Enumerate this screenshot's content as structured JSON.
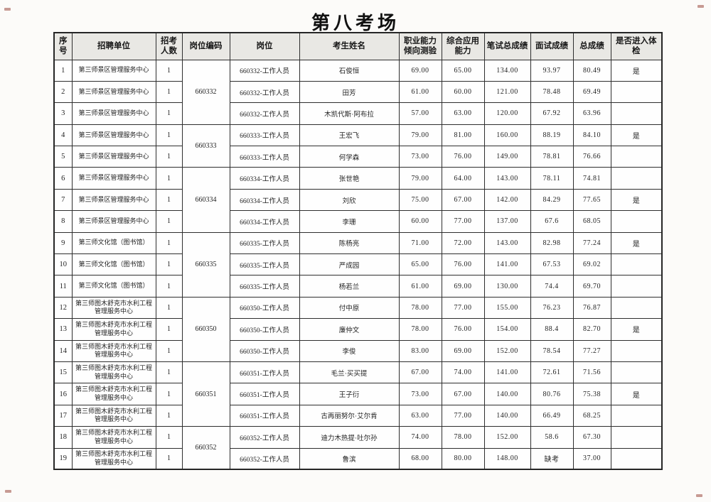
{
  "page": {
    "title": "第八考场"
  },
  "table": {
    "headers": [
      "序号",
      "招聘单位",
      "招考人数",
      "岗位编码",
      "岗位",
      "考生姓名",
      "职业能力倾向测验",
      "综合应用能力",
      "笔试总成绩",
      "面试成绩",
      "总成绩",
      "是否进入体检"
    ],
    "rows": [
      {
        "seq": "1",
        "unit": "第三师景区管理服务中心",
        "count": "1",
        "code": "660332",
        "code_rowspan": 3,
        "position": "660332-工作人员",
        "name": "石俊恒",
        "aptitude": "69.00",
        "comprehensive": "65.00",
        "written_total": "134.00",
        "interview": "93.97",
        "total": "80.49",
        "physical": "是"
      },
      {
        "seq": "2",
        "unit": "第三师景区管理服务中心",
        "count": "1",
        "code": null,
        "position": "660332-工作人员",
        "name": "田芳",
        "aptitude": "61.00",
        "comprehensive": "60.00",
        "written_total": "121.00",
        "interview": "78.48",
        "total": "69.49",
        "physical": ""
      },
      {
        "seq": "3",
        "unit": "第三师景区管理服务中心",
        "count": "1",
        "code": null,
        "position": "660332-工作人员",
        "name": "木凯代斯·阿布拉",
        "aptitude": "57.00",
        "comprehensive": "63.00",
        "written_total": "120.00",
        "interview": "67.92",
        "total": "63.96",
        "physical": ""
      },
      {
        "seq": "4",
        "unit": "第三师景区管理服务中心",
        "count": "1",
        "code": "660333",
        "code_rowspan": 2,
        "position": "660333-工作人员",
        "name": "王宏飞",
        "aptitude": "79.00",
        "comprehensive": "81.00",
        "written_total": "160.00",
        "interview": "88.19",
        "total": "84.10",
        "physical": "是"
      },
      {
        "seq": "5",
        "unit": "第三师景区管理服务中心",
        "count": "1",
        "code": null,
        "position": "660333-工作人员",
        "name": "何学森",
        "aptitude": "73.00",
        "comprehensive": "76.00",
        "written_total": "149.00",
        "interview": "78.81",
        "total": "76.66",
        "physical": ""
      },
      {
        "seq": "6",
        "unit": "第三师景区管理服务中心",
        "count": "1",
        "code": "660334",
        "code_rowspan": 3,
        "position": "660334-工作人员",
        "name": "张世艳",
        "aptitude": "79.00",
        "comprehensive": "64.00",
        "written_total": "143.00",
        "interview": "78.11",
        "total": "74.81",
        "physical": ""
      },
      {
        "seq": "7",
        "unit": "第三师景区管理服务中心",
        "count": "1",
        "code": null,
        "position": "660334-工作人员",
        "name": "刘欣",
        "aptitude": "75.00",
        "comprehensive": "67.00",
        "written_total": "142.00",
        "interview": "84.29",
        "total": "77.65",
        "physical": "是"
      },
      {
        "seq": "8",
        "unit": "第三师景区管理服务中心",
        "count": "1",
        "code": null,
        "position": "660334-工作人员",
        "name": "李珊",
        "aptitude": "60.00",
        "comprehensive": "77.00",
        "written_total": "137.00",
        "interview": "67.6",
        "total": "68.05",
        "physical": ""
      },
      {
        "seq": "9",
        "unit": "第三师文化馆（图书馆）",
        "count": "1",
        "code": "660335",
        "code_rowspan": 3,
        "position": "660335-工作人员",
        "name": "陈杨亮",
        "aptitude": "71.00",
        "comprehensive": "72.00",
        "written_total": "143.00",
        "interview": "82.98",
        "total": "77.24",
        "physical": "是"
      },
      {
        "seq": "10",
        "unit": "第三师文化馆（图书馆）",
        "count": "1",
        "code": null,
        "position": "660335-工作人员",
        "name": "严成园",
        "aptitude": "65.00",
        "comprehensive": "76.00",
        "written_total": "141.00",
        "interview": "67.53",
        "total": "69.02",
        "physical": ""
      },
      {
        "seq": "11",
        "unit": "第三师文化馆（图书馆）",
        "count": "1",
        "code": null,
        "position": "660335-工作人员",
        "name": "杨若兰",
        "aptitude": "61.00",
        "comprehensive": "69.00",
        "written_total": "130.00",
        "interview": "74.4",
        "total": "69.70",
        "physical": ""
      },
      {
        "seq": "12",
        "unit": "第三师图木舒克市水利工程管理服务中心",
        "count": "1",
        "code": "660350",
        "code_rowspan": 3,
        "position": "660350-工作人员",
        "name": "付中原",
        "aptitude": "78.00",
        "comprehensive": "77.00",
        "written_total": "155.00",
        "interview": "76.23",
        "total": "76.87",
        "physical": ""
      },
      {
        "seq": "13",
        "unit": "第三师图木舒克市水利工程管理服务中心",
        "count": "1",
        "code": null,
        "position": "660350-工作人员",
        "name": "廉仲文",
        "aptitude": "78.00",
        "comprehensive": "76.00",
        "written_total": "154.00",
        "interview": "88.4",
        "total": "82.70",
        "physical": "是"
      },
      {
        "seq": "14",
        "unit": "第三师图木舒克市水利工程管理服务中心",
        "count": "1",
        "code": null,
        "position": "660350-工作人员",
        "name": "李俊",
        "aptitude": "83.00",
        "comprehensive": "69.00",
        "written_total": "152.00",
        "interview": "78.54",
        "total": "77.27",
        "physical": ""
      },
      {
        "seq": "15",
        "unit": "第三师图木舒克市水利工程管理服务中心",
        "count": "1",
        "code": "660351",
        "code_rowspan": 3,
        "position": "660351-工作人员",
        "name": "毛兰·买买提",
        "aptitude": "67.00",
        "comprehensive": "74.00",
        "written_total": "141.00",
        "interview": "72.61",
        "total": "71.56",
        "physical": ""
      },
      {
        "seq": "16",
        "unit": "第三师图木舒克市水利工程管理服务中心",
        "count": "1",
        "code": null,
        "position": "660351-工作人员",
        "name": "王子衍",
        "aptitude": "73.00",
        "comprehensive": "67.00",
        "written_total": "140.00",
        "interview": "80.76",
        "total": "75.38",
        "physical": "是"
      },
      {
        "seq": "17",
        "unit": "第三师图木舒克市水利工程管理服务中心",
        "count": "1",
        "code": null,
        "position": "660351-工作人员",
        "name": "古再丽努尔·艾尔肯",
        "aptitude": "63.00",
        "comprehensive": "77.00",
        "written_total": "140.00",
        "interview": "66.49",
        "total": "68.25",
        "physical": ""
      },
      {
        "seq": "18",
        "unit": "第三师图木舒克市水利工程管理服务中心",
        "count": "1",
        "code": "660352",
        "code_rowspan": 2,
        "position": "660352-工作人员",
        "name": "迪力木热提·吐尔孙",
        "aptitude": "74.00",
        "comprehensive": "78.00",
        "written_total": "152.00",
        "interview": "58.6",
        "total": "67.30",
        "physical": ""
      },
      {
        "seq": "19",
        "unit": "第三师图木舒克市水利工程管理服务中心",
        "count": "1",
        "code": null,
        "position": "660352-工作人员",
        "name": "鲁滨",
        "aptitude": "68.00",
        "comprehensive": "80.00",
        "written_total": "148.00",
        "interview": "缺考",
        "total": "37.00",
        "physical": ""
      }
    ]
  }
}
